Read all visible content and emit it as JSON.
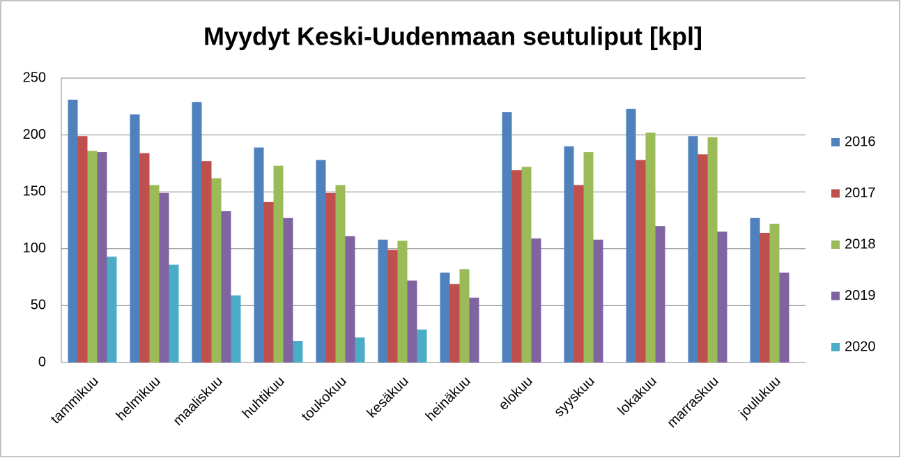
{
  "chart_data": {
    "type": "bar",
    "title": "Myydyt Keski-Uudenmaan seutuliput [kpl]",
    "categories": [
      "tammikuu",
      "helmikuu",
      "maaliskuu",
      "huhtikuu",
      "toukokuu",
      "kesäkuu",
      "heinäkuu",
      "elokuu",
      "syyskuu",
      "lokakuu",
      "marraskuu",
      "joulukuu"
    ],
    "series": [
      {
        "name": "2016",
        "color": "#4f81bd",
        "values": [
          231,
          218,
          229,
          189,
          178,
          108,
          79,
          220,
          190,
          223,
          199,
          127
        ]
      },
      {
        "name": "2017",
        "color": "#c0504d",
        "values": [
          199,
          184,
          177,
          141,
          149,
          99,
          69,
          169,
          156,
          178,
          183,
          114
        ]
      },
      {
        "name": "2018",
        "color": "#9bbb59",
        "values": [
          186,
          156,
          162,
          173,
          156,
          107,
          82,
          172,
          185,
          202,
          198,
          122
        ]
      },
      {
        "name": "2019",
        "color": "#8064a2",
        "values": [
          185,
          149,
          133,
          127,
          111,
          72,
          57,
          109,
          108,
          120,
          115,
          79
        ]
      },
      {
        "name": "2020",
        "color": "#4bacc6",
        "values": [
          93,
          86,
          59,
          19,
          22,
          29,
          null,
          null,
          null,
          null,
          null,
          null
        ]
      }
    ],
    "ylim": [
      0,
      250
    ],
    "yticks": [
      0,
      50,
      100,
      150,
      200,
      250
    ],
    "grid": true,
    "legend": "right"
  }
}
